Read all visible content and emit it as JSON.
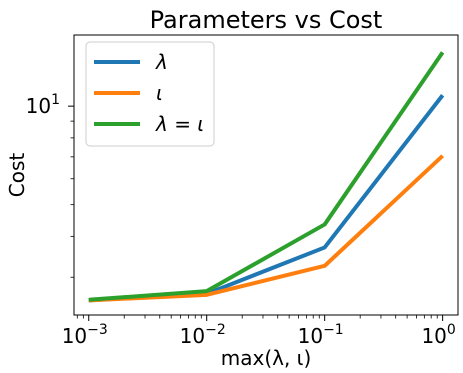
{
  "chart_data": {
    "type": "line",
    "title": "Parameters vs Cost",
    "xlabel": "max(λ, ι)",
    "ylabel": "Cost",
    "x_scale": "log",
    "y_scale": "log",
    "x_ticks": [
      {
        "value": 0.001,
        "base": "10",
        "exp": "−3"
      },
      {
        "value": 0.01,
        "base": "10",
        "exp": "−2"
      },
      {
        "value": 0.1,
        "base": "10",
        "exp": "−1"
      },
      {
        "value": 1,
        "base": "10",
        "exp": "0"
      }
    ],
    "y_ticks": [
      {
        "value": 10,
        "base": "10",
        "exp": "1"
      }
    ],
    "xlim": [
      0.00075,
      1.35
    ],
    "ylim": [
      2.3,
      16.5
    ],
    "x": [
      0.001,
      0.01,
      0.1,
      1
    ],
    "series": [
      {
        "name": "λ",
        "color": "#1f77b4",
        "values": [
          2.55,
          2.67,
          3.7,
          10.8
        ]
      },
      {
        "name": "ι",
        "color": "#ff7f0e",
        "values": [
          2.55,
          2.65,
          3.25,
          7.05
        ]
      },
      {
        "name": "λ = ι",
        "color": "#2ca02c",
        "values": [
          2.56,
          2.72,
          4.35,
          14.6
        ]
      }
    ],
    "legend_position": "top-left",
    "grid": false
  }
}
